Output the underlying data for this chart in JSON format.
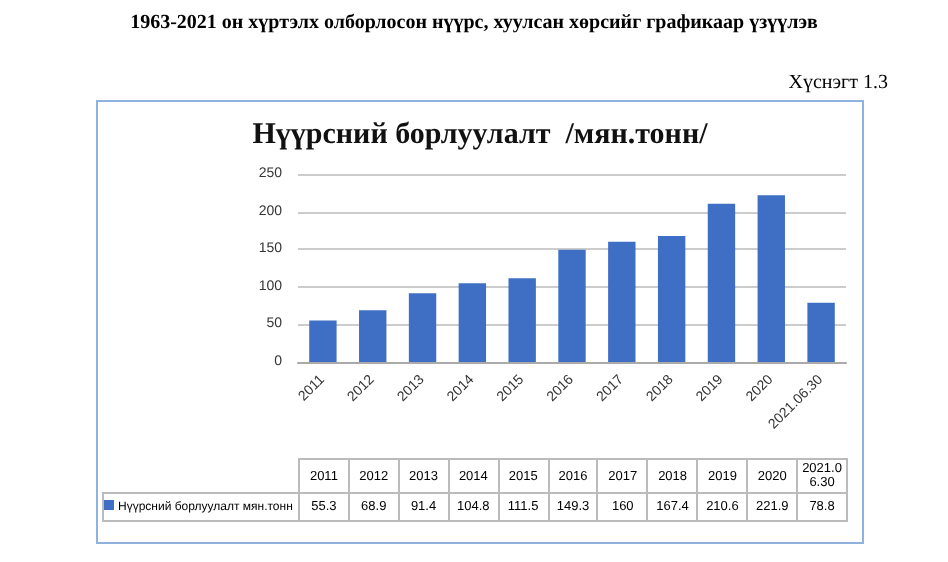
{
  "chart_data": {
    "type": "bar",
    "title": "Нүүрсний борлуулалт  /мян.тонн/",
    "subtitle": "1963-2021 он хүртэлх олборлосон нүүрс, хуулсан хөрсийг графикаар үзүүлэв",
    "annotations": [
      "Хүснэгт 1.3"
    ],
    "categories": [
      "2011",
      "2012",
      "2013",
      "2014",
      "2015",
      "2016",
      "2017",
      "2018",
      "2019",
      "2020",
      "2021.06.30"
    ],
    "series": [
      {
        "name": "Нүүрсний борлуулалт мян.тонн",
        "color": "#3f6fc4",
        "values": [
          55.3,
          68.9,
          91.4,
          104.8,
          111.5,
          149.3,
          160,
          167.4,
          210.6,
          221.9,
          78.8
        ]
      }
    ],
    "ylim": [
      0,
      250
    ],
    "yticks": [
      0,
      50,
      100,
      150,
      200,
      250
    ],
    "grid": "y",
    "legend": "bottom",
    "data_labels": true
  }
}
